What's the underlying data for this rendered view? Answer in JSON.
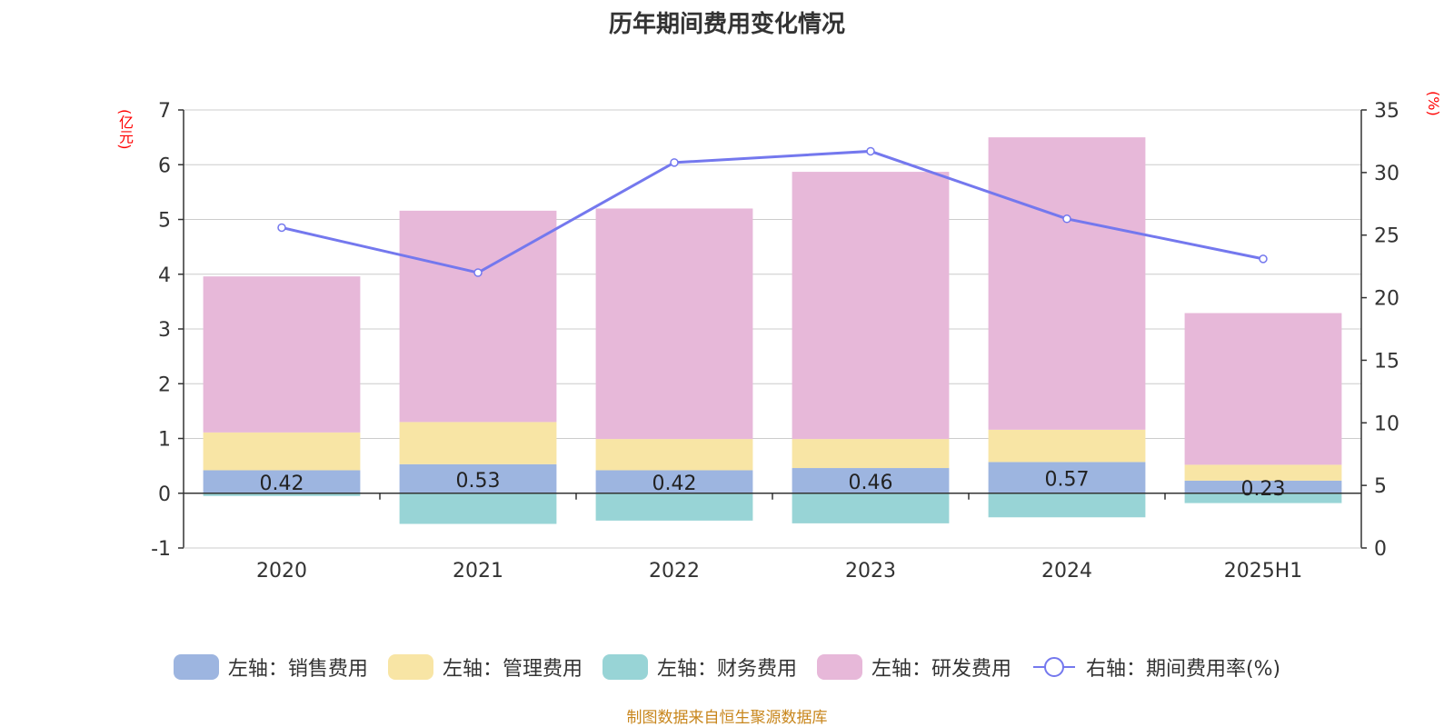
{
  "chart_data": {
    "type": "bar",
    "title": "历年期间费用变化情况",
    "categories": [
      "2020",
      "2021",
      "2022",
      "2023",
      "2024",
      "2025H1"
    ],
    "left_axis": {
      "unit": "(亿元)",
      "ylim": [
        -1,
        7
      ],
      "ticks": [
        "7",
        "6",
        "5",
        "4",
        "3",
        "2",
        "1",
        "0",
        "-1"
      ]
    },
    "right_axis": {
      "unit": "(%)",
      "ylim": [
        0,
        35
      ],
      "ticks": [
        "35",
        "30",
        "25",
        "20",
        "15",
        "10",
        "5",
        "0"
      ]
    },
    "series": [
      {
        "name": "左轴：销售费用",
        "type": "bar",
        "axis": "left",
        "color": "#9db5e0",
        "values": [
          0.42,
          0.53,
          0.42,
          0.46,
          0.57,
          0.23
        ],
        "labels": [
          "0.42",
          "0.53",
          "0.42",
          "0.46",
          "0.57",
          "0.23"
        ]
      },
      {
        "name": "左轴：管理费用",
        "type": "bar",
        "axis": "left",
        "color": "#f8e5a5",
        "values": [
          0.69,
          0.77,
          0.57,
          0.53,
          0.59,
          0.29
        ]
      },
      {
        "name": "左轴：财务费用",
        "type": "bar",
        "axis": "left",
        "color": "#98d4d6",
        "values": [
          -0.05,
          -0.56,
          -0.5,
          -0.55,
          -0.44,
          -0.18
        ]
      },
      {
        "name": "左轴：研发费用",
        "type": "bar",
        "axis": "left",
        "color": "#e7b8d9",
        "values": [
          2.85,
          3.86,
          4.21,
          4.88,
          5.34,
          2.77
        ]
      },
      {
        "name": "右轴：期间费用率(%)",
        "type": "line",
        "axis": "right",
        "color": "#7478ee",
        "values": [
          25.6,
          22.0,
          30.8,
          31.7,
          26.3,
          23.1
        ]
      }
    ],
    "grid": true,
    "legend_position": "bottom"
  },
  "source_note": "制图数据来自恒生聚源数据库"
}
